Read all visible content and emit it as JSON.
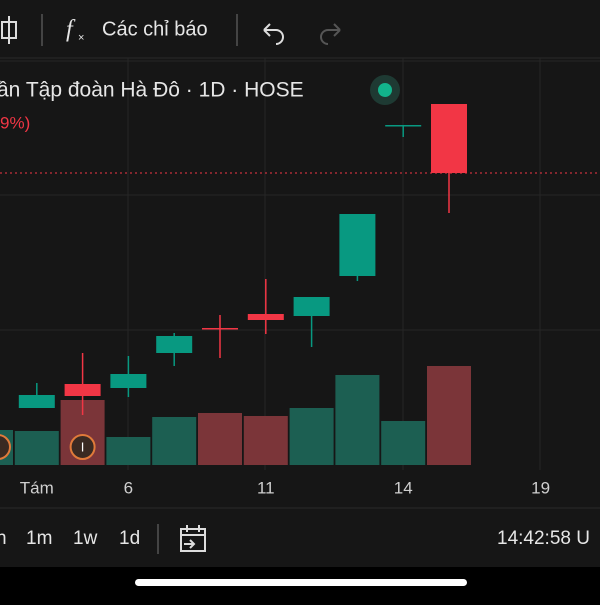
{
  "toolbar": {
    "indicators": "Các chỉ báo"
  },
  "chart_data": {
    "type": "candlestick",
    "title": "ần Tập đoàn Hà Đô · 1D · HOSE",
    "subtitle": "9%)",
    "categories": [
      null,
      "Tám",
      null,
      "6",
      null,
      null,
      "11",
      null,
      null,
      "14",
      null,
      null,
      "19"
    ],
    "open": [
      null,
      57,
      81,
      77,
      112,
      137,
      151,
      149,
      189,
      340,
      361,
      null,
      null
    ],
    "high": [
      null,
      82,
      112,
      109,
      132,
      150,
      186,
      168,
      251,
      340,
      361,
      null,
      null
    ],
    "low": [
      null,
      57,
      50,
      68,
      99,
      107,
      131,
      118,
      184,
      328,
      252,
      null,
      null
    ],
    "close": [
      null,
      70,
      69,
      91,
      129,
      136,
      145,
      168,
      251,
      340,
      292,
      null,
      null
    ],
    "volume": [
      35,
      34,
      65,
      28,
      48,
      52,
      49,
      57,
      90,
      44,
      99,
      null,
      null
    ],
    "up_color": "#089981",
    "down_color": "#f23645",
    "volume_up_color": "#1c5f52",
    "volume_down_color": "#7b3539",
    "ylim": [
      0,
      400
    ],
    "volume_lim": [
      0,
      400
    ],
    "events": [
      "I",
      "I"
    ]
  },
  "bottom_bar": {
    "ranges": [
      "n",
      "1m",
      "1w",
      "1d"
    ],
    "clock": "14:42:58 U"
  }
}
